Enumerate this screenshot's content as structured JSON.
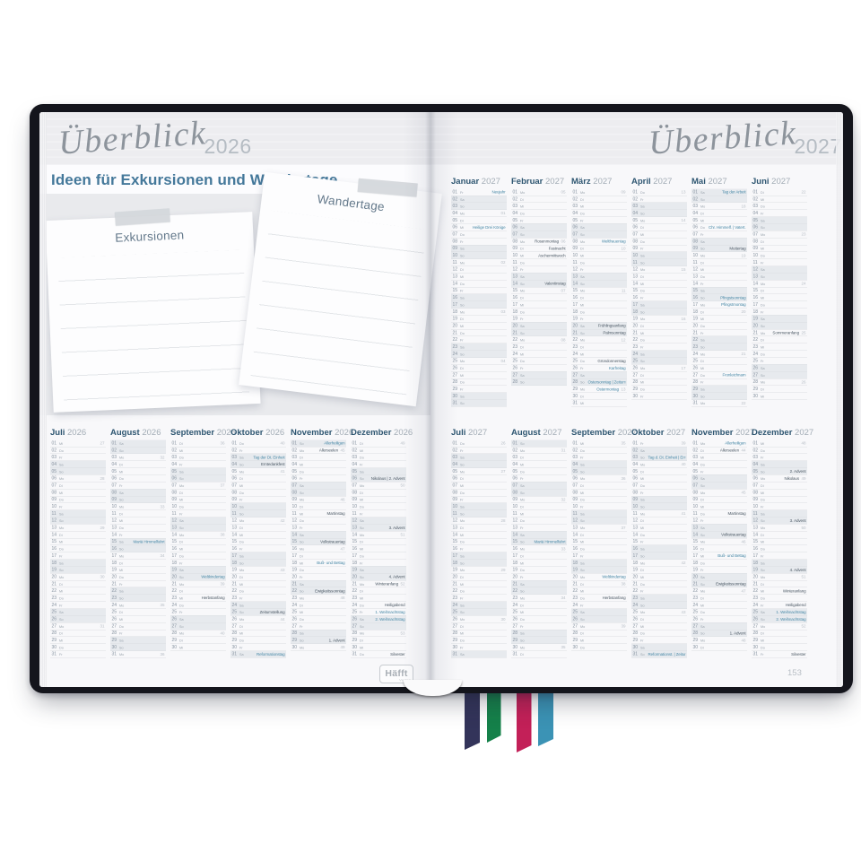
{
  "page": {
    "headers": {
      "left": {
        "script": "Überblick",
        "year": "2026"
      },
      "right": {
        "script": "Überblick",
        "year": "2027"
      }
    },
    "left_title": "Ideen für Exkursionen und Wandertage",
    "note_cards": [
      {
        "label": "Exkursionen"
      },
      {
        "label": "Wandertage"
      }
    ],
    "brand": {
      "name": "Häfft",
      "sub": "Verlag"
    },
    "page_number": "153"
  },
  "weekdays": [
    "Mo",
    "Di",
    "Mi",
    "Do",
    "Fr",
    "Sa",
    "So"
  ],
  "colors": {
    "holiday_blue": "#4a8aa8",
    "holiday_dark": "#4d5a66",
    "weekend_band": "#e7eaee",
    "month_name": "#2e5671",
    "cover": "#14151c",
    "ribbons": [
      "#33345a",
      "#15814a",
      "#c32058",
      "#3b93b5"
    ]
  },
  "calendars": {
    "left_bottom": {
      "year": 2026,
      "months": [
        {
          "name": "Juli",
          "m": 7,
          "notes": {}
        },
        {
          "name": "August",
          "m": 8,
          "notes": {
            "15": {
              "t": "Mariä Himmelfahrt",
              "h": 1
            }
          }
        },
        {
          "name": "September",
          "m": 9,
          "notes": {
            "20": {
              "t": "Weltkindertag",
              "h": 1
            },
            "23": {
              "t": "Herbstanfang"
            }
          }
        },
        {
          "name": "Oktober",
          "m": 10,
          "notes": {
            "3": {
              "t": "Tag der Dt. Einheit",
              "h": 1
            },
            "4": {
              "t": "Erntedankfest"
            },
            "25": {
              "t": "Zeitumstellung"
            },
            "31": {
              "t": "Reformationstag",
              "h": 1
            }
          }
        },
        {
          "name": "November",
          "m": 11,
          "notes": {
            "1": {
              "t": "Allerheiligen",
              "h": 1
            },
            "2": {
              "t": "Allerseelen"
            },
            "11": {
              "t": "Martinstag"
            },
            "15": {
              "t": "Volkstrauertag"
            },
            "18": {
              "t": "Buß- und Bettag",
              "h": 1
            },
            "22": {
              "t": "Ewigkeitssonntag"
            },
            "29": {
              "t": "1. Advent"
            }
          }
        },
        {
          "name": "Dezember",
          "m": 12,
          "notes": {
            "6": {
              "t": "Nikolaus | 2. Advent"
            },
            "13": {
              "t": "3. Advent"
            },
            "20": {
              "t": "4. Advent"
            },
            "21": {
              "t": "Winteranfang"
            },
            "24": {
              "t": "Heiligabend"
            },
            "25": {
              "t": "1. Weihnachtstag",
              "h": 1
            },
            "26": {
              "t": "2. Weihnachtstag",
              "h": 1
            },
            "31": {
              "t": "Silvester"
            }
          }
        }
      ]
    },
    "right_top": {
      "year": 2027,
      "months": [
        {
          "name": "Januar",
          "m": 1,
          "notes": {
            "1": {
              "t": "Neujahr",
              "h": 1
            },
            "6": {
              "t": "Heilige Drei Könige",
              "h": 1
            }
          }
        },
        {
          "name": "Februar",
          "m": 2,
          "notes": {
            "8": {
              "t": "Rosenmontag"
            },
            "9": {
              "t": "Fastnacht"
            },
            "10": {
              "t": "Aschermittwoch"
            },
            "14": {
              "t": "Valentinstag"
            }
          }
        },
        {
          "name": "März",
          "m": 3,
          "notes": {
            "8": {
              "t": "Weltfrauentag",
              "h": 1
            },
            "20": {
              "t": "Frühlingsanfang"
            },
            "21": {
              "t": "Palmsonntag"
            },
            "25": {
              "t": "Gründonnerstag"
            },
            "26": {
              "t": "Karfreitag",
              "h": 1
            },
            "28": {
              "t": "Ostersonntag | Zeitumst.",
              "h": 1
            },
            "29": {
              "t": "Ostermontag",
              "h": 1
            }
          }
        },
        {
          "name": "April",
          "m": 4,
          "notes": {}
        },
        {
          "name": "Mai",
          "m": 5,
          "notes": {
            "1": {
              "t": "Tag der Arbeit",
              "h": 1
            },
            "6": {
              "t": "Chr. Himmelf. | Vatert.",
              "h": 1
            },
            "9": {
              "t": "Muttertag"
            },
            "16": {
              "t": "Pfingstsonntag",
              "h": 1
            },
            "17": {
              "t": "Pfingstmontag",
              "h": 1
            },
            "27": {
              "t": "Fronleichnam",
              "h": 1
            }
          }
        },
        {
          "name": "Juni",
          "m": 6,
          "notes": {
            "21": {
              "t": "Sommeranfang"
            }
          }
        }
      ]
    },
    "right_bottom": {
      "year": 2027,
      "months": [
        {
          "name": "Juli",
          "m": 7,
          "notes": {}
        },
        {
          "name": "August",
          "m": 8,
          "notes": {
            "15": {
              "t": "Mariä Himmelfahrt",
              "h": 1
            }
          }
        },
        {
          "name": "September",
          "m": 9,
          "notes": {
            "20": {
              "t": "Weltkindertag",
              "h": 1
            },
            "23": {
              "t": "Herbstanfang"
            }
          }
        },
        {
          "name": "Oktober",
          "m": 10,
          "notes": {
            "3": {
              "t": "Tag d. Dt. Einheit | Erntd.",
              "h": 1
            },
            "31": {
              "t": "Reformationst. | Zeitumst.",
              "h": 1
            }
          }
        },
        {
          "name": "November",
          "m": 11,
          "notes": {
            "1": {
              "t": "Allerheiligen",
              "h": 1
            },
            "2": {
              "t": "Allerseelen"
            },
            "11": {
              "t": "Martinstag"
            },
            "14": {
              "t": "Volkstrauertag"
            },
            "17": {
              "t": "Buß- und Bettag",
              "h": 1
            },
            "21": {
              "t": "Ewigkeitssonntag"
            },
            "28": {
              "t": "1. Advent"
            }
          }
        },
        {
          "name": "Dezember",
          "m": 12,
          "notes": {
            "5": {
              "t": "2. Advent"
            },
            "6": {
              "t": "Nikolaus"
            },
            "12": {
              "t": "3. Advent"
            },
            "19": {
              "t": "4. Advent"
            },
            "22": {
              "t": "Winteranfang"
            },
            "24": {
              "t": "Heiligabend"
            },
            "25": {
              "t": "1. Weihnachtstag",
              "h": 1
            },
            "26": {
              "t": "2. Weihnachtstag",
              "h": 1
            },
            "31": {
              "t": "Silvester"
            }
          }
        }
      ]
    }
  }
}
